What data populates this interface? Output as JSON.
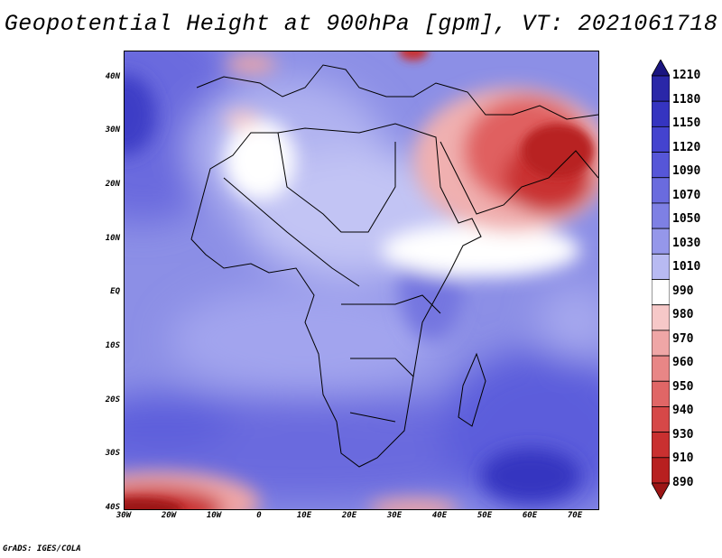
{
  "title": "Geopotential Height at 900hPa [gpm], VT: 2021061718",
  "credit": "GrADS: IGES/COLA",
  "map": {
    "lon_range": [
      -30,
      75
    ],
    "lat_range": [
      -40,
      45
    ],
    "lat_labels": [
      "40N",
      "30N",
      "20N",
      "10N",
      "EQ",
      "10S",
      "20S",
      "30S",
      "40S"
    ],
    "lat_values": [
      40,
      30,
      20,
      10,
      0,
      -10,
      -20,
      -30,
      -40
    ],
    "lon_labels": [
      "30W",
      "20W",
      "10W",
      "0",
      "10E",
      "20E",
      "30E",
      "40E",
      "50E",
      "60E",
      "70E"
    ],
    "lon_values": [
      -30,
      -20,
      -10,
      0,
      10,
      20,
      30,
      40,
      50,
      60,
      70
    ]
  },
  "colorbar": {
    "labels": [
      "1210",
      "1180",
      "1150",
      "1120",
      "1090",
      "1070",
      "1050",
      "1030",
      "1010",
      "990",
      "980",
      "970",
      "960",
      "950",
      "940",
      "930",
      "910",
      "890"
    ],
    "colors": [
      "#1a1580",
      "#2a27a8",
      "#3534c0",
      "#4443cf",
      "#5656d8",
      "#6a6bde",
      "#7e80e4",
      "#9597ea",
      "#b8baf2",
      "#ffffff",
      "#f6c8c8",
      "#efa6a6",
      "#e88686",
      "#e06666",
      "#d64848",
      "#c93030",
      "#b82020",
      "#9c1515"
    ]
  }
}
